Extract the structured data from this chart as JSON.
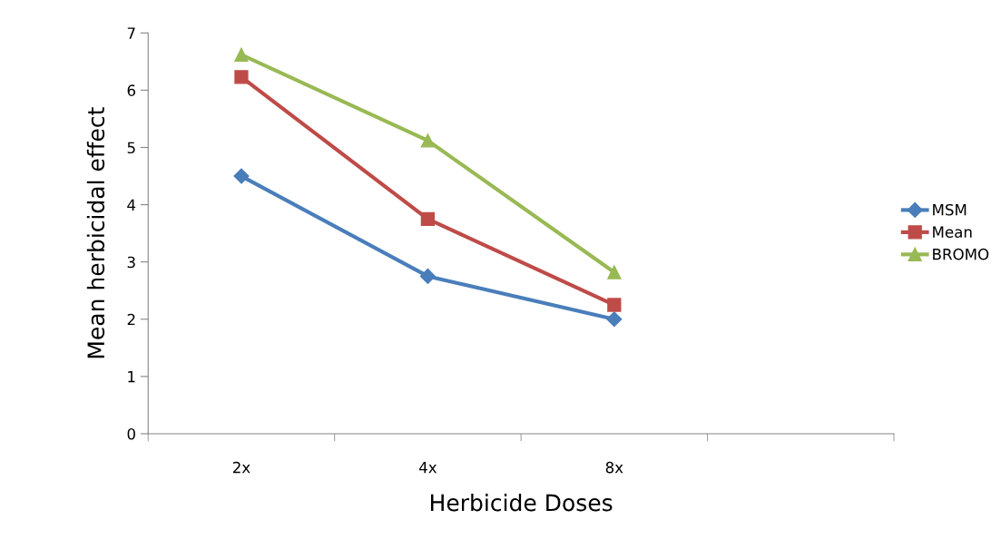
{
  "chart_data": {
    "type": "line",
    "xlabel": "Herbicide Doses",
    "ylabel": "Mean herbicidal effect",
    "categories": [
      "2x",
      "4x",
      "8x",
      null
    ],
    "ylim": [
      0,
      7
    ],
    "yticks": [
      0,
      1,
      2,
      3,
      4,
      5,
      6,
      7
    ],
    "grid": false,
    "legend": "right",
    "line_style": "solid",
    "series": [
      {
        "name": "MSM",
        "color": "#4a7ebb",
        "marker": "diamond",
        "values": [
          4.5,
          2.75,
          2.0,
          null
        ]
      },
      {
        "name": "Mean",
        "color": "#be4b48",
        "marker": "square",
        "values": [
          6.23,
          3.75,
          2.25,
          null
        ]
      },
      {
        "name": "BROMO",
        "color": "#98b954",
        "marker": "triangle",
        "values": [
          6.62,
          5.12,
          2.82,
          null
        ]
      }
    ]
  }
}
